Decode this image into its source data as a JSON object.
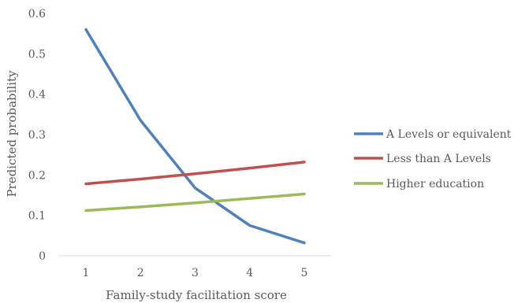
{
  "chart_data": {
    "type": "line",
    "title": "",
    "xlabel": "Family-study facilitation score",
    "ylabel": "Predicted probability",
    "x": [
      1,
      2,
      3,
      4,
      5
    ],
    "xticks": [
      "1",
      "2",
      "3",
      "4",
      "5"
    ],
    "ylim": [
      0,
      0.6
    ],
    "yticks": [
      "0",
      "0.1",
      "0.2",
      "0.3",
      "0.4",
      "0.5",
      "0.6"
    ],
    "grid": false,
    "legend_position": "right",
    "series": [
      {
        "name": "A Levels or equivalent",
        "color": "#4f81bd",
        "values": [
          0.56,
          0.335,
          0.168,
          0.075,
          0.032
        ]
      },
      {
        "name": "Less than A Levels",
        "color": "#c0504d",
        "values": [
          0.178,
          0.19,
          0.203,
          0.217,
          0.232
        ]
      },
      {
        "name": "Higher education",
        "color": "#9bbb59",
        "values": [
          0.112,
          0.121,
          0.131,
          0.142,
          0.153
        ]
      }
    ]
  }
}
